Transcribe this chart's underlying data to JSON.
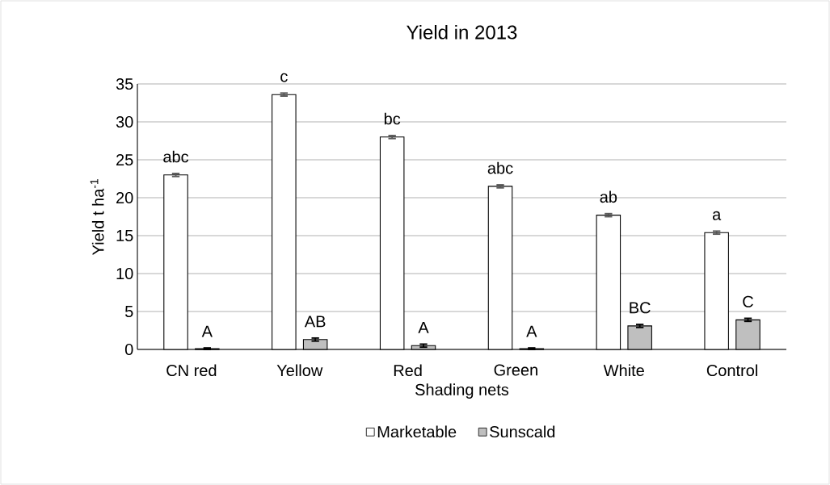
{
  "chart_data": {
    "type": "bar",
    "title": "Yield in 2013",
    "xlabel": "Shading nets",
    "ylabel": "Yield t ha$^{-1}$",
    "categories": [
      "CN red",
      "Yellow",
      "Red",
      "Green",
      "White",
      "Control"
    ],
    "series": [
      {
        "name": "Marketable",
        "color": "#ffffff",
        "values": [
          23.0,
          33.6,
          28.0,
          21.5,
          17.7,
          15.4
        ],
        "errors": [
          0.2,
          0.2,
          0.2,
          0.2,
          0.2,
          0.2
        ],
        "value_labels": [
          "abc",
          "c",
          "bc",
          "abc",
          "ab",
          "a"
        ]
      },
      {
        "name": "Sunscald",
        "color": "#bfbfbf",
        "values": [
          0.1,
          1.3,
          0.5,
          0.1,
          3.1,
          3.9
        ],
        "errors": [
          0.1,
          0.2,
          0.2,
          0.1,
          0.2,
          0.2
        ],
        "value_labels": [
          "A",
          "AB",
          "A",
          "A",
          "BC",
          "C"
        ]
      }
    ],
    "ylim": [
      0,
      35
    ],
    "yticks": [
      0,
      5,
      10,
      15,
      20,
      25,
      30,
      35
    ],
    "grid": "y",
    "legend": "bottom"
  }
}
